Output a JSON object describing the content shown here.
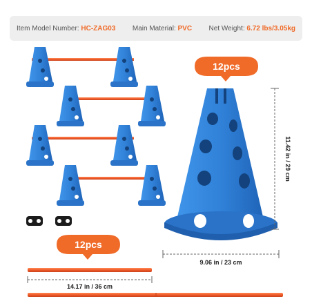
{
  "specs": [
    {
      "label": "Item Model Number:",
      "value": "HC-ZAG03"
    },
    {
      "label": "Main Material:",
      "value": "PVC"
    },
    {
      "label": "Net Weight:",
      "value": "6.72 lbs/3.05kg"
    }
  ],
  "badge_top": "12pcs",
  "badge_bottom": "12pcs",
  "dim_height": "11.42 in / 29 cm",
  "dim_width": "9.06 in / 23 cm",
  "dim_bar": "14.17 in / 36 cm",
  "colors": {
    "cone_blue": "#2f7fd6",
    "cone_dark": "#1f5fae",
    "pole_orange": "#ef5a2a",
    "badge_orange": "#f06a28",
    "accent": "#f06a28"
  }
}
